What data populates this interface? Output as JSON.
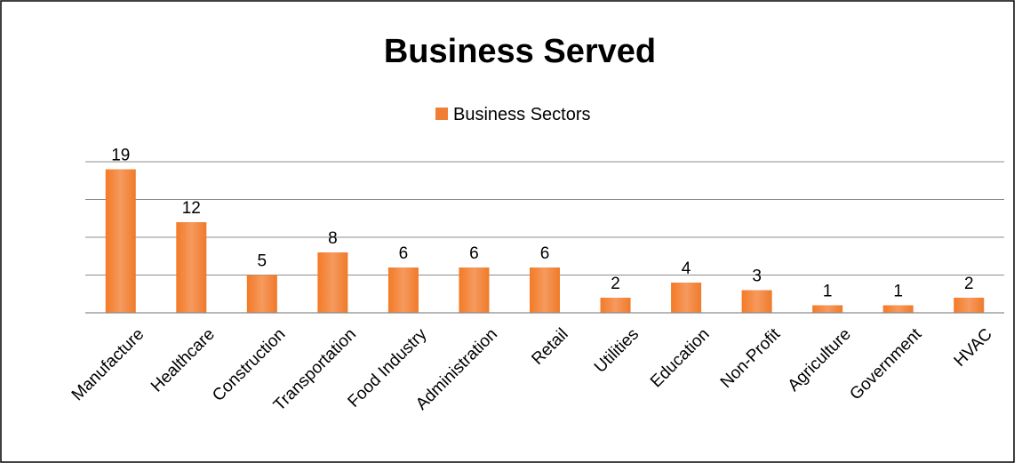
{
  "chart_data": {
    "type": "bar",
    "title": "Business Served",
    "categories": [
      "Manufacture",
      "Healthcare",
      "Construction",
      "Transportation",
      "Food Industry",
      "Administration",
      "Retail",
      "Utilities",
      "Education",
      "Non-Profit",
      "Agriculture",
      "Government",
      "HVAC"
    ],
    "series": [
      {
        "name": "Business Sectors",
        "values": [
          19,
          12,
          5,
          8,
          6,
          6,
          6,
          2,
          4,
          3,
          1,
          1,
          2
        ],
        "color": "#f07f35"
      }
    ],
    "xlabel": "",
    "ylabel": "",
    "ylim": [
      0,
      20
    ],
    "y_tick_step": 5,
    "y_tick_labels_visible": false,
    "grid": true,
    "legend": "top-center",
    "data_labels": true
  }
}
